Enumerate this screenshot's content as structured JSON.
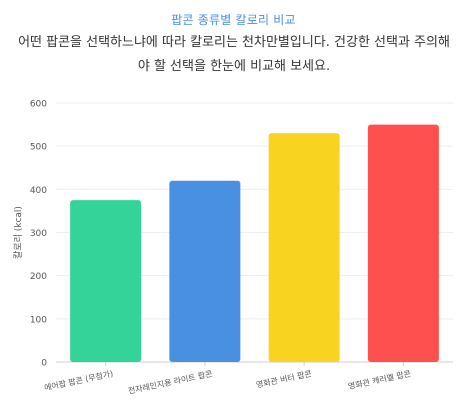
{
  "header": {
    "title": "팝콘 종류별 칼로리 비교",
    "description": "어떤 팝콘을 선택하느냐에 따라 칼로리는 천차만별입니다. 건강한 선택과 주의해야 할 선택을 한눈에 비교해 보세요."
  },
  "chart_data": {
    "type": "bar",
    "title": "팝콘 종류별 칼로리 비교",
    "categories": [
      "에어팝 팝콘 (무첨가)",
      "전자레인지용 라이트 팝콘",
      "영화관 버터 팝콘",
      "영화관 캐러멜 팝콘"
    ],
    "values": [
      375,
      420,
      530,
      550
    ],
    "colors": [
      "#34d399",
      "#4a90e2",
      "#f8d31f",
      "#ff5050"
    ],
    "xlabel": "",
    "ylabel": "칼로리 (kcal)",
    "ylim": [
      0,
      600
    ],
    "yticks": [
      0,
      100,
      200,
      300,
      400,
      500,
      600
    ],
    "grid": true,
    "legend": "none"
  }
}
